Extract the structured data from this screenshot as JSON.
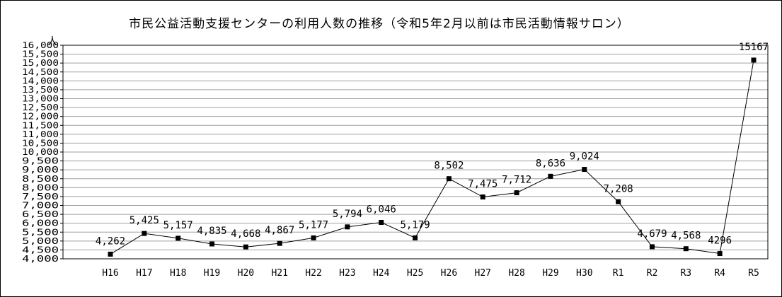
{
  "chart_data": {
    "type": "line",
    "title": "市民公益活動支援センターの利用人数の推移（令和5年2月以前は市民活動情報サロン）",
    "ylabel": "人",
    "xlabel": "",
    "ylim": [
      4000,
      16000
    ],
    "ytick_step": 500,
    "grid": true,
    "legend": "none",
    "series_color": "#000000",
    "categories": [
      "H16",
      "H17",
      "H18",
      "H19",
      "H20",
      "H21",
      "H22",
      "H23",
      "H24",
      "H25",
      "H26",
      "H27",
      "H28",
      "H29",
      "H30",
      "R1",
      "R2",
      "R3",
      "R4",
      "R5"
    ],
    "values": [
      4262,
      5425,
      5157,
      4835,
      4668,
      4867,
      5177,
      5794,
      6046,
      5179,
      8502,
      7475,
      7712,
      8636,
      9024,
      7208,
      4679,
      4568,
      4296,
      15167
    ],
    "data_labels": [
      "4,262",
      "5,425",
      "5,157",
      "4,835",
      "4,668",
      "4,867",
      "5,177",
      "5,794",
      "6,046",
      "5,179",
      "8,502",
      "7,475",
      "7,712",
      "8,636",
      "9,024",
      "7,208",
      "4,679",
      "4,568",
      "4296",
      "15167"
    ],
    "ytick_labels": [
      "4,000",
      "4,500",
      "5,000",
      "5,500",
      "6,000",
      "6,500",
      "7,000",
      "7,500",
      "8,000",
      "8,500",
      "9,000",
      "9,500",
      "10,000",
      "10,500",
      "11,000",
      "11,500",
      "12,000",
      "12,500",
      "13,000",
      "13,500",
      "14,000",
      "14,500",
      "15,000",
      "15,500",
      "16,000"
    ]
  }
}
